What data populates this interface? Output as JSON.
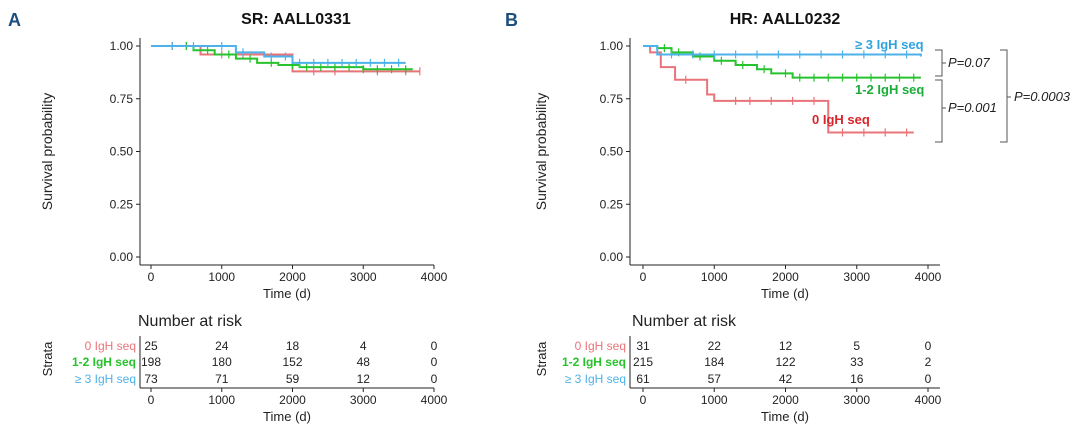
{
  "colors": {
    "zero": "#e8747a",
    "one_two": "#27c22d",
    "three_plus": "#4db2ea",
    "p_zero_label": "#d8242b",
    "p_onetwo_label": "#1aad3a",
    "p_three_label": "#2fa3e0",
    "panel_letter": "#1d4f7c",
    "axis": "#222222"
  },
  "chart_data": [
    {
      "type": "line",
      "panel_letter": "A",
      "title": "SR: AALL0331",
      "xlabel": "Time (d)",
      "ylabel": "Survival probability",
      "xlim": [
        0,
        4000
      ],
      "ylim": [
        0,
        1
      ],
      "x_ticks": [
        "0",
        "1000",
        "2000",
        "3000",
        "4000"
      ],
      "y_ticks": [
        "0.00",
        "0.25",
        "0.50",
        "0.75",
        "1.00"
      ],
      "grid": false,
      "series": [
        {
          "key": "zero",
          "x": [
            0,
            150,
            700,
            1500,
            2000,
            2500,
            3000,
            3800
          ],
          "y": [
            1.0,
            1.0,
            0.96,
            0.96,
            0.88,
            0.88,
            0.88,
            0.88
          ],
          "censor": [
            300,
            500,
            1000,
            1300,
            2300,
            2600,
            3200,
            3600,
            3800
          ]
        },
        {
          "key": "one_two",
          "x": [
            0,
            400,
            600,
            900,
            1200,
            1500,
            1800,
            2100,
            2500,
            3000,
            3700
          ],
          "y": [
            1.0,
            1.0,
            0.98,
            0.96,
            0.94,
            0.92,
            0.91,
            0.9,
            0.9,
            0.89,
            0.89
          ],
          "censor": [
            500,
            800,
            1100,
            1400,
            1700,
            2000,
            2200,
            2400,
            2600,
            2800,
            3000,
            3200,
            3400,
            3600
          ]
        },
        {
          "key": "three_plus",
          "x": [
            0,
            800,
            1200,
            1600,
            2000,
            3600
          ],
          "y": [
            1.0,
            1.0,
            0.97,
            0.95,
            0.92,
            0.92
          ],
          "censor": [
            300,
            600,
            1000,
            1300,
            1700,
            1900,
            2100,
            2300,
            2500,
            2700,
            2900,
            3100,
            3300,
            3500
          ]
        }
      ],
      "risk_table": {
        "title": "Number at risk",
        "strata_label": "Strata",
        "row_labels": [
          "0 IgH seq",
          "1-2 IgH seq",
          "≥ 3 IgH seq"
        ],
        "rows": [
          [
            "25",
            "24",
            "18",
            "4",
            "0"
          ],
          [
            "198",
            "180",
            "152",
            "48",
            "0"
          ],
          [
            "73",
            "71",
            "59",
            "12",
            "0"
          ]
        ],
        "x_ticks": [
          "0",
          "1000",
          "2000",
          "3000",
          "4000"
        ],
        "xlabel": "Time (d)"
      }
    },
    {
      "type": "line",
      "panel_letter": "B",
      "title": "HR: AALL0232",
      "xlabel": "Time (d)",
      "ylabel": "Survival probability",
      "xlim": [
        0,
        4000
      ],
      "ylim": [
        0,
        1
      ],
      "x_ticks": [
        "0",
        "1000",
        "2000",
        "3000",
        "4000"
      ],
      "y_ticks": [
        "0.00",
        "0.25",
        "0.50",
        "0.75",
        "1.00"
      ],
      "grid": false,
      "series": [
        {
          "key": "zero",
          "label": "0 IgH seq",
          "x": [
            0,
            100,
            250,
            450,
            900,
            1000,
            2000,
            2600,
            3800
          ],
          "y": [
            1.0,
            0.97,
            0.9,
            0.84,
            0.77,
            0.74,
            0.74,
            0.59,
            0.59
          ],
          "censor": [
            600,
            1300,
            1500,
            1800,
            2100,
            2400,
            2800,
            3100,
            3400,
            3700
          ]
        },
        {
          "key": "one_two",
          "label": "1-2 IgH seq",
          "x": [
            0,
            200,
            400,
            700,
            1000,
            1300,
            1600,
            1800,
            2100,
            3900
          ],
          "y": [
            1.0,
            0.99,
            0.97,
            0.95,
            0.93,
            0.91,
            0.89,
            0.87,
            0.85,
            0.85
          ],
          "censor": [
            300,
            500,
            800,
            1100,
            1400,
            1700,
            2000,
            2200,
            2400,
            2600,
            2800,
            3000,
            3200,
            3400,
            3600,
            3800
          ]
        },
        {
          "key": "three_plus",
          "label": "≥ 3 IgH seq",
          "x": [
            0,
            200,
            1800,
            3900
          ],
          "y": [
            1.0,
            0.96,
            0.96,
            0.95
          ],
          "censor": [
            400,
            700,
            1000,
            1300,
            1600,
            1900,
            2200,
            2500,
            2800,
            3100,
            3400,
            3700
          ]
        }
      ],
      "p_values": {
        "top": "P=0.07",
        "bottom": "P=0.001",
        "outer": "P=0.0003"
      },
      "risk_table": {
        "title": "Number at risk",
        "strata_label": "Strata",
        "row_labels": [
          "0 IgH seq",
          "1-2 IgH seq",
          "≥ 3 IgH seq"
        ],
        "rows": [
          [
            "31",
            "22",
            "12",
            "5",
            "0"
          ],
          [
            "215",
            "184",
            "122",
            "33",
            "2"
          ],
          [
            "61",
            "57",
            "42",
            "16",
            "0"
          ]
        ],
        "x_ticks": [
          "0",
          "1000",
          "2000",
          "3000",
          "4000"
        ],
        "xlabel": "Time (d)"
      }
    }
  ]
}
